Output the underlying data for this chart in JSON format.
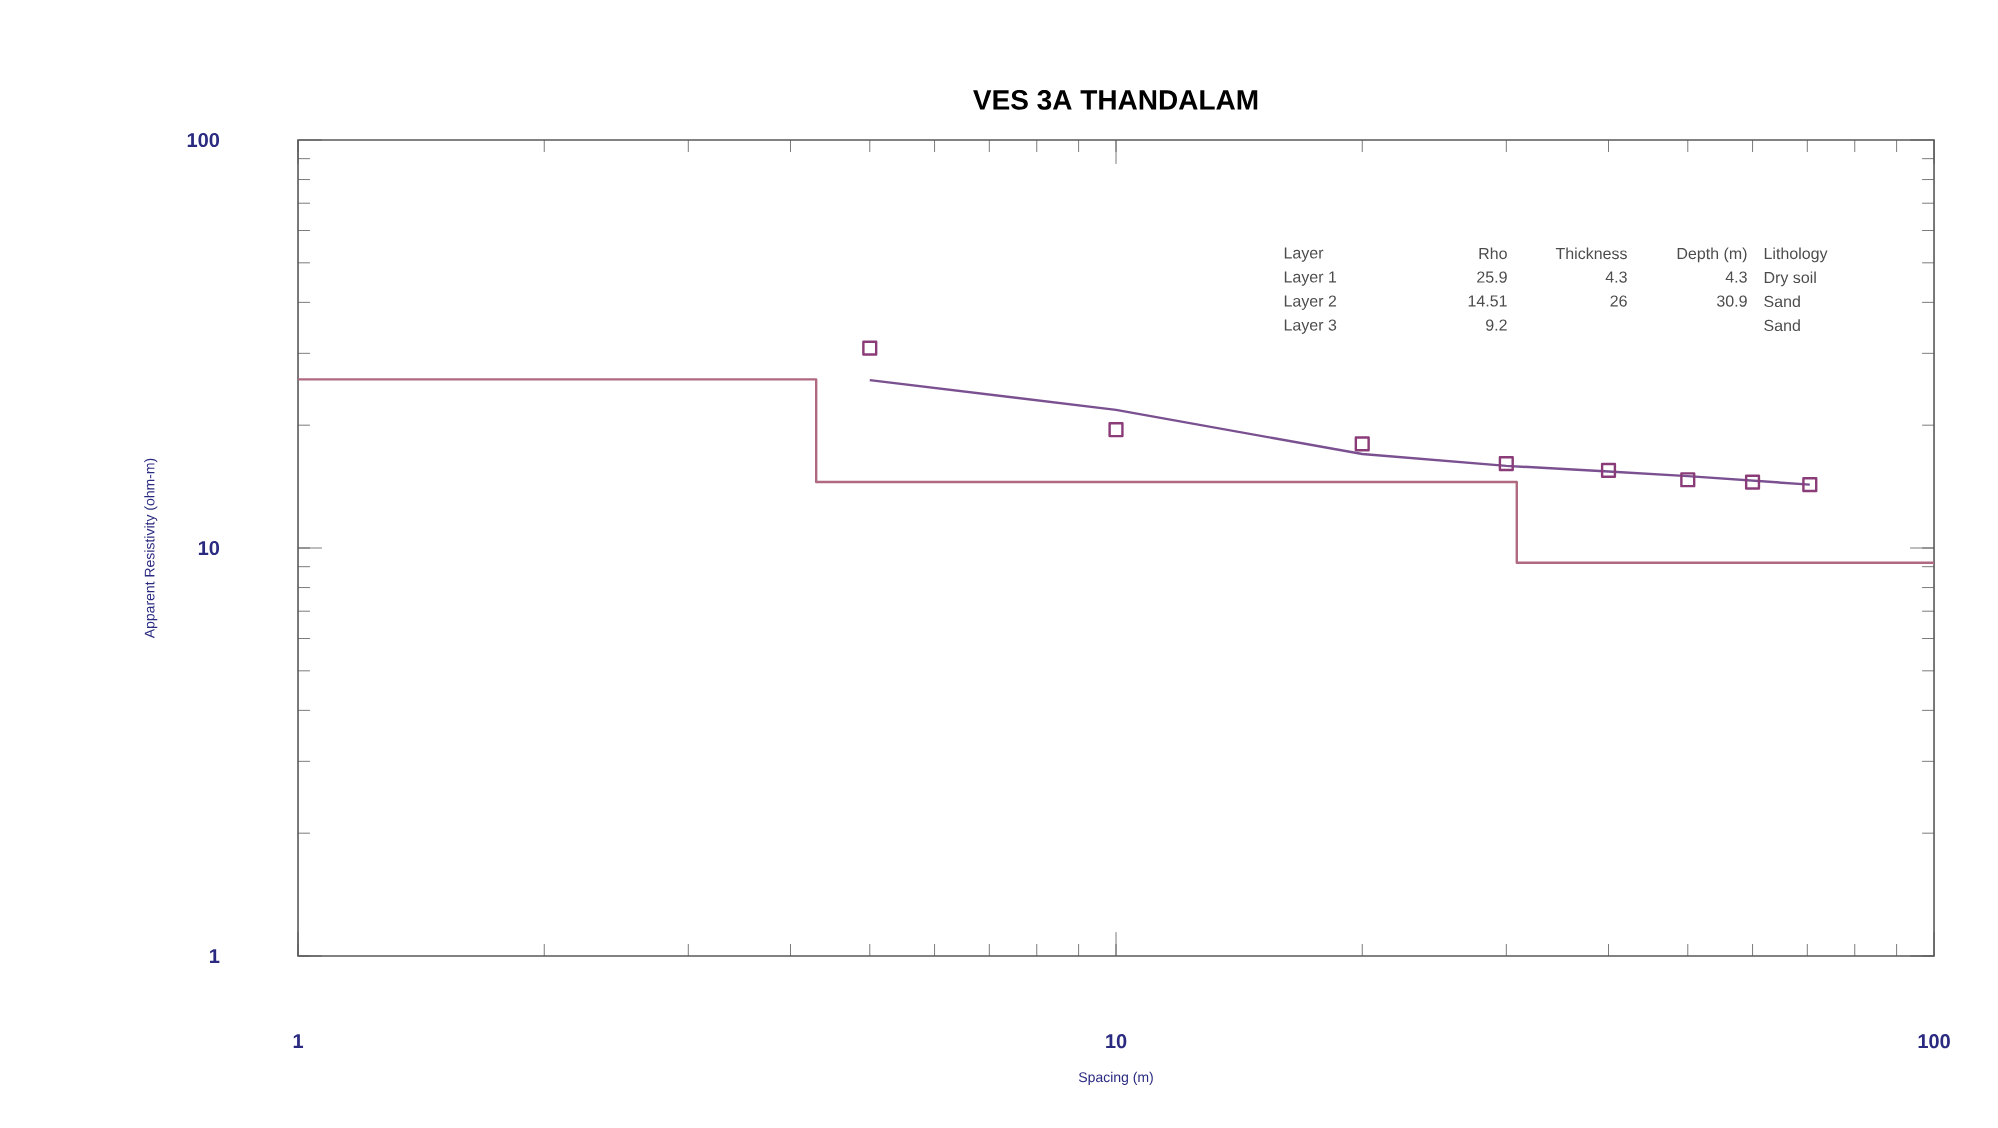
{
  "chart_data": {
    "type": "scatter",
    "title": "VES 3A THANDALAM",
    "xlabel": "Spacing (m)",
    "ylabel": "Apparent Resistivity (ohm-m)",
    "log": "xy",
    "xlim": [
      1,
      100
    ],
    "ylim": [
      1,
      100
    ],
    "xticks": [
      1,
      10,
      100
    ],
    "yticks": [
      1,
      10,
      100
    ],
    "grid": false,
    "series": [
      {
        "color": "#8a3c78",
        "marker": "square",
        "x": [
          5,
          10,
          20,
          30,
          40,
          50,
          60,
          70.5
        ],
        "values": [
          30.9,
          19.5,
          18,
          16.1,
          15.5,
          14.7,
          14.5,
          14.3
        ]
      },
      {
        "type": "line",
        "color": "#7a5090",
        "marker": "none",
        "x": [
          5,
          10,
          20,
          30,
          40,
          50,
          70.5
        ],
        "values": [
          25.8,
          21.8,
          17,
          15.9,
          15.4,
          15,
          14.3
        ]
      },
      {
        "type": "step",
        "color": "#b06a80",
        "marker": "none",
        "x": [
          1,
          4.3,
          30.9,
          100
        ],
        "values": [
          25.9,
          14.51,
          9.2,
          9.2
        ]
      }
    ],
    "annotations": [
      "Layer",
      "Rho",
      "Thickness",
      "Depth (m)",
      "Lithology",
      "Layer 1",
      "25.9",
      "4.3",
      "4.3",
      "Dry soil",
      "Layer 2",
      "14.51",
      "26",
      "30.9",
      "Sand",
      "Layer 3",
      "9.2",
      "Sand"
    ]
  }
}
